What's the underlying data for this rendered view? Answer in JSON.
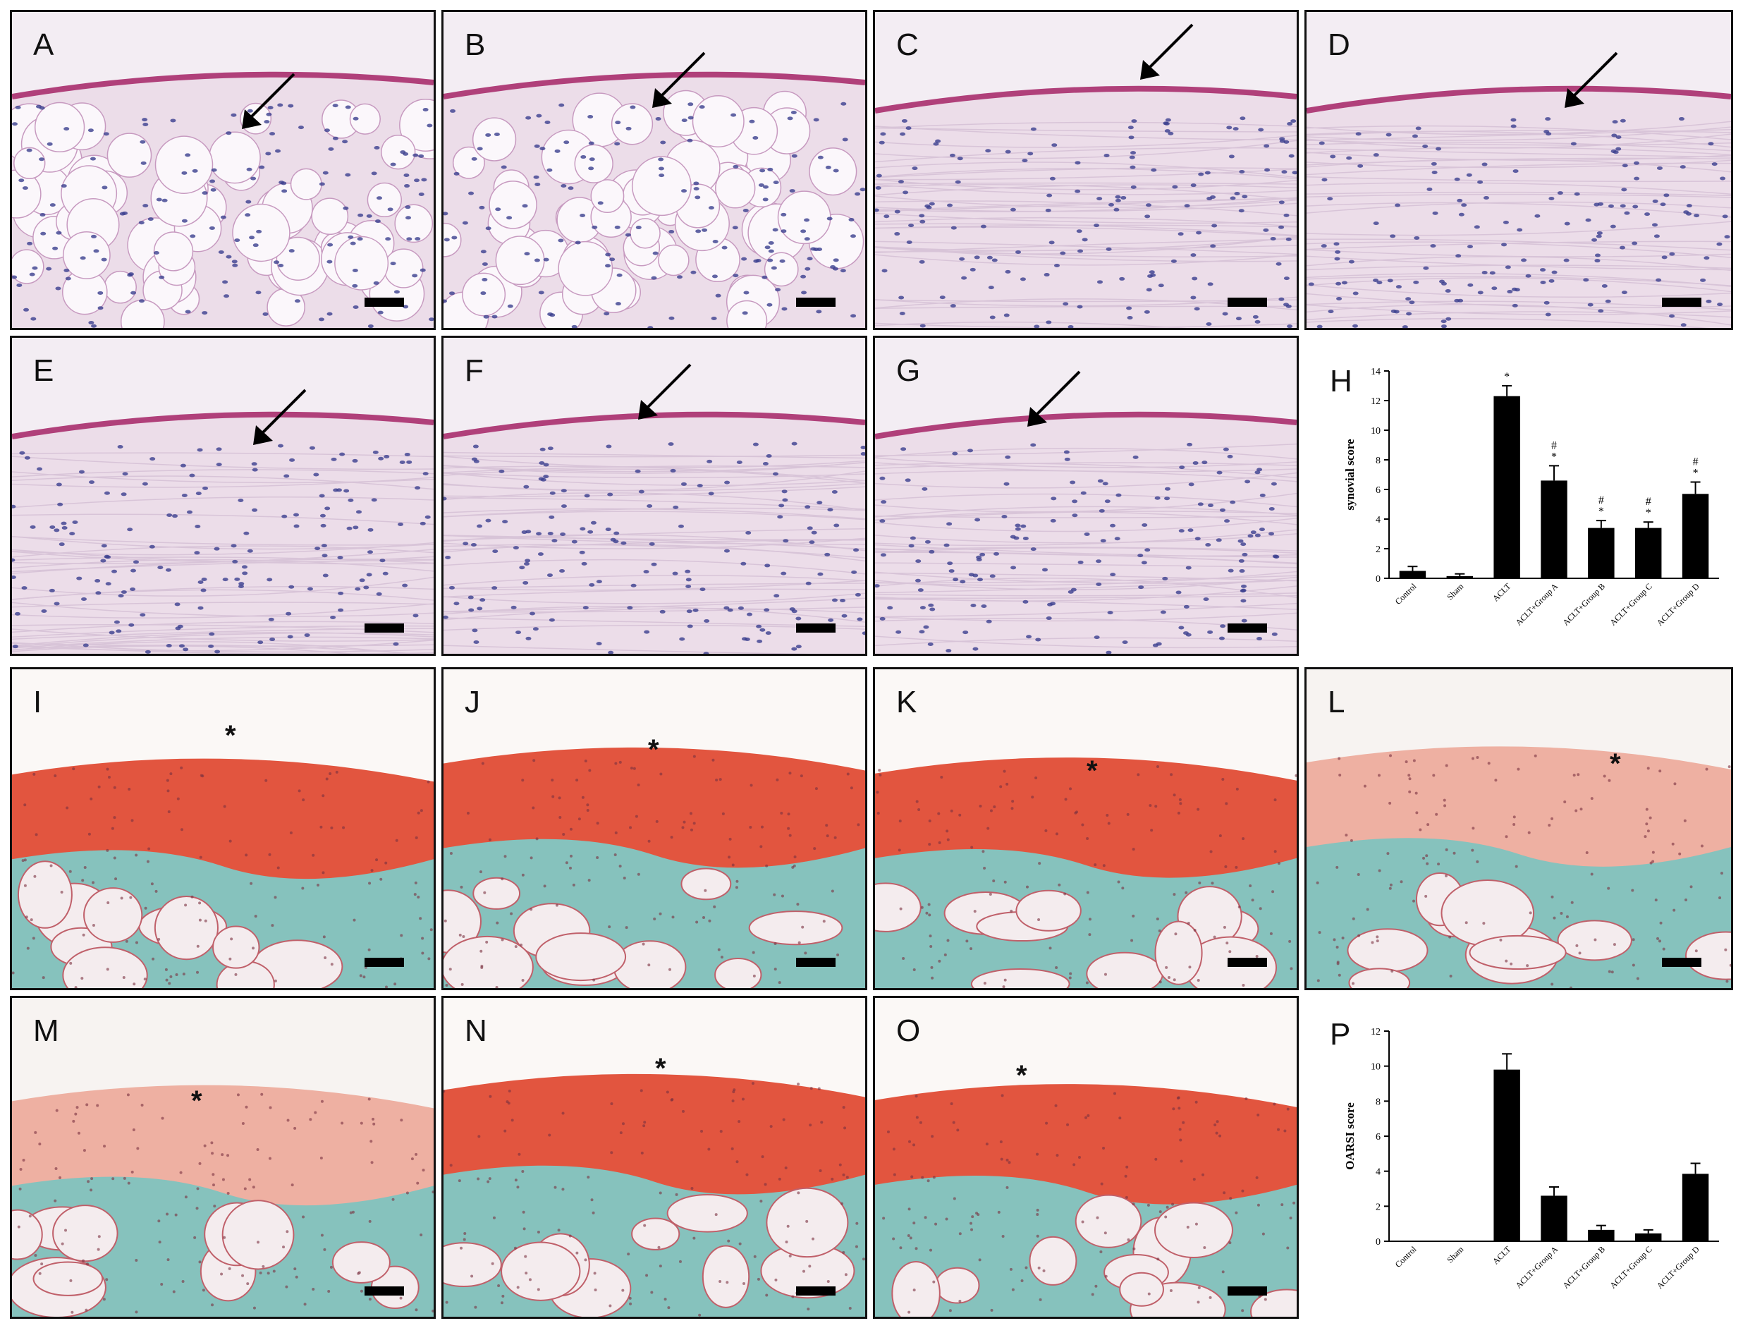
{
  "panels": {
    "A": {
      "label": "A"
    },
    "B": {
      "label": "B"
    },
    "C": {
      "label": "C"
    },
    "D": {
      "label": "D"
    },
    "E": {
      "label": "E"
    },
    "F": {
      "label": "F"
    },
    "G": {
      "label": "G"
    },
    "I": {
      "label": "I"
    },
    "J": {
      "label": "J"
    },
    "K": {
      "label": "K"
    },
    "L": {
      "label": "L"
    },
    "M": {
      "label": "M"
    },
    "N": {
      "label": "N"
    },
    "O": {
      "label": "O"
    }
  },
  "marker_symbol": "*",
  "colors": {
    "he_background": "#ecdde9",
    "he_cells": "#3b3f8f",
    "he_surface": "#b0407a",
    "safranin_red": "#e2553f",
    "fast_green": "#86c2bd",
    "bar_fill": "#000000"
  },
  "chart_data": [
    {
      "panel_label": "H",
      "type": "bar",
      "ylabel": "synovial score",
      "categories": [
        "Control",
        "Sham",
        "ACLT",
        "ACLT+Group A",
        "ACLT+Group B",
        "ACLT+Group C",
        "ACLT+Group D"
      ],
      "values": [
        0.5,
        0.15,
        12.3,
        6.6,
        3.4,
        3.4,
        5.7
      ],
      "errors": [
        0.3,
        0.15,
        0.7,
        1.0,
        0.5,
        0.4,
        0.8
      ],
      "annotations": [
        "",
        "",
        "*",
        "#\n*",
        "#\n*",
        "#\n*",
        "#\n*"
      ],
      "ylim": [
        0,
        14
      ],
      "yticks": [
        0,
        2,
        4,
        6,
        8,
        10,
        12,
        14
      ]
    },
    {
      "panel_label": "P",
      "type": "bar",
      "ylabel": "OARSI score",
      "categories": [
        "Control",
        "Sham",
        "ACLT",
        "ACLT+Group A",
        "ACLT+Group B",
        "ACLT+Group C",
        "ACLT+Group D"
      ],
      "values": [
        0,
        0,
        9.8,
        2.6,
        0.65,
        0.45,
        3.85
      ],
      "errors": [
        0,
        0,
        0.9,
        0.5,
        0.25,
        0.2,
        0.6
      ],
      "annotations": [
        "",
        "",
        "",
        "",
        "",
        "",
        ""
      ],
      "ylim": [
        0,
        12
      ],
      "yticks": [
        0,
        2,
        4,
        6,
        8,
        10,
        12
      ]
    }
  ]
}
